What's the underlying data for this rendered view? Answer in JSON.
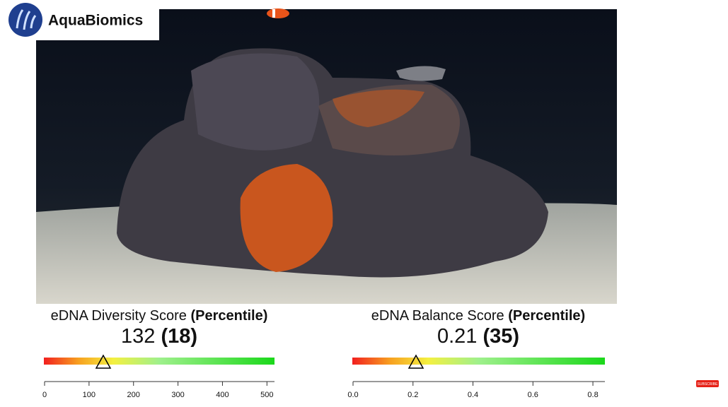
{
  "brand": "AquaBiomics",
  "subscribe_button": "SUBSCRIBE",
  "chart_data": [
    {
      "type": "gauge",
      "title": "eDNA Diversity Score",
      "title_emphasis": "(Percentile)",
      "value": 132,
      "percentile": 18,
      "percentile_label": "(18)",
      "xlim": [
        0,
        517
      ],
      "xticks": [
        0,
        100,
        200,
        300,
        400,
        500
      ]
    },
    {
      "type": "gauge",
      "title": "eDNA Balance Score",
      "title_emphasis": "(Percentile)",
      "value": 0.21,
      "percentile": 35,
      "percentile_label": "(35)",
      "xlim": [
        0,
        0.84
      ],
      "xticks": [
        {
          "value": 0,
          "label": "0.0"
        },
        0.2,
        0.4,
        0.6,
        0.8
      ]
    }
  ]
}
